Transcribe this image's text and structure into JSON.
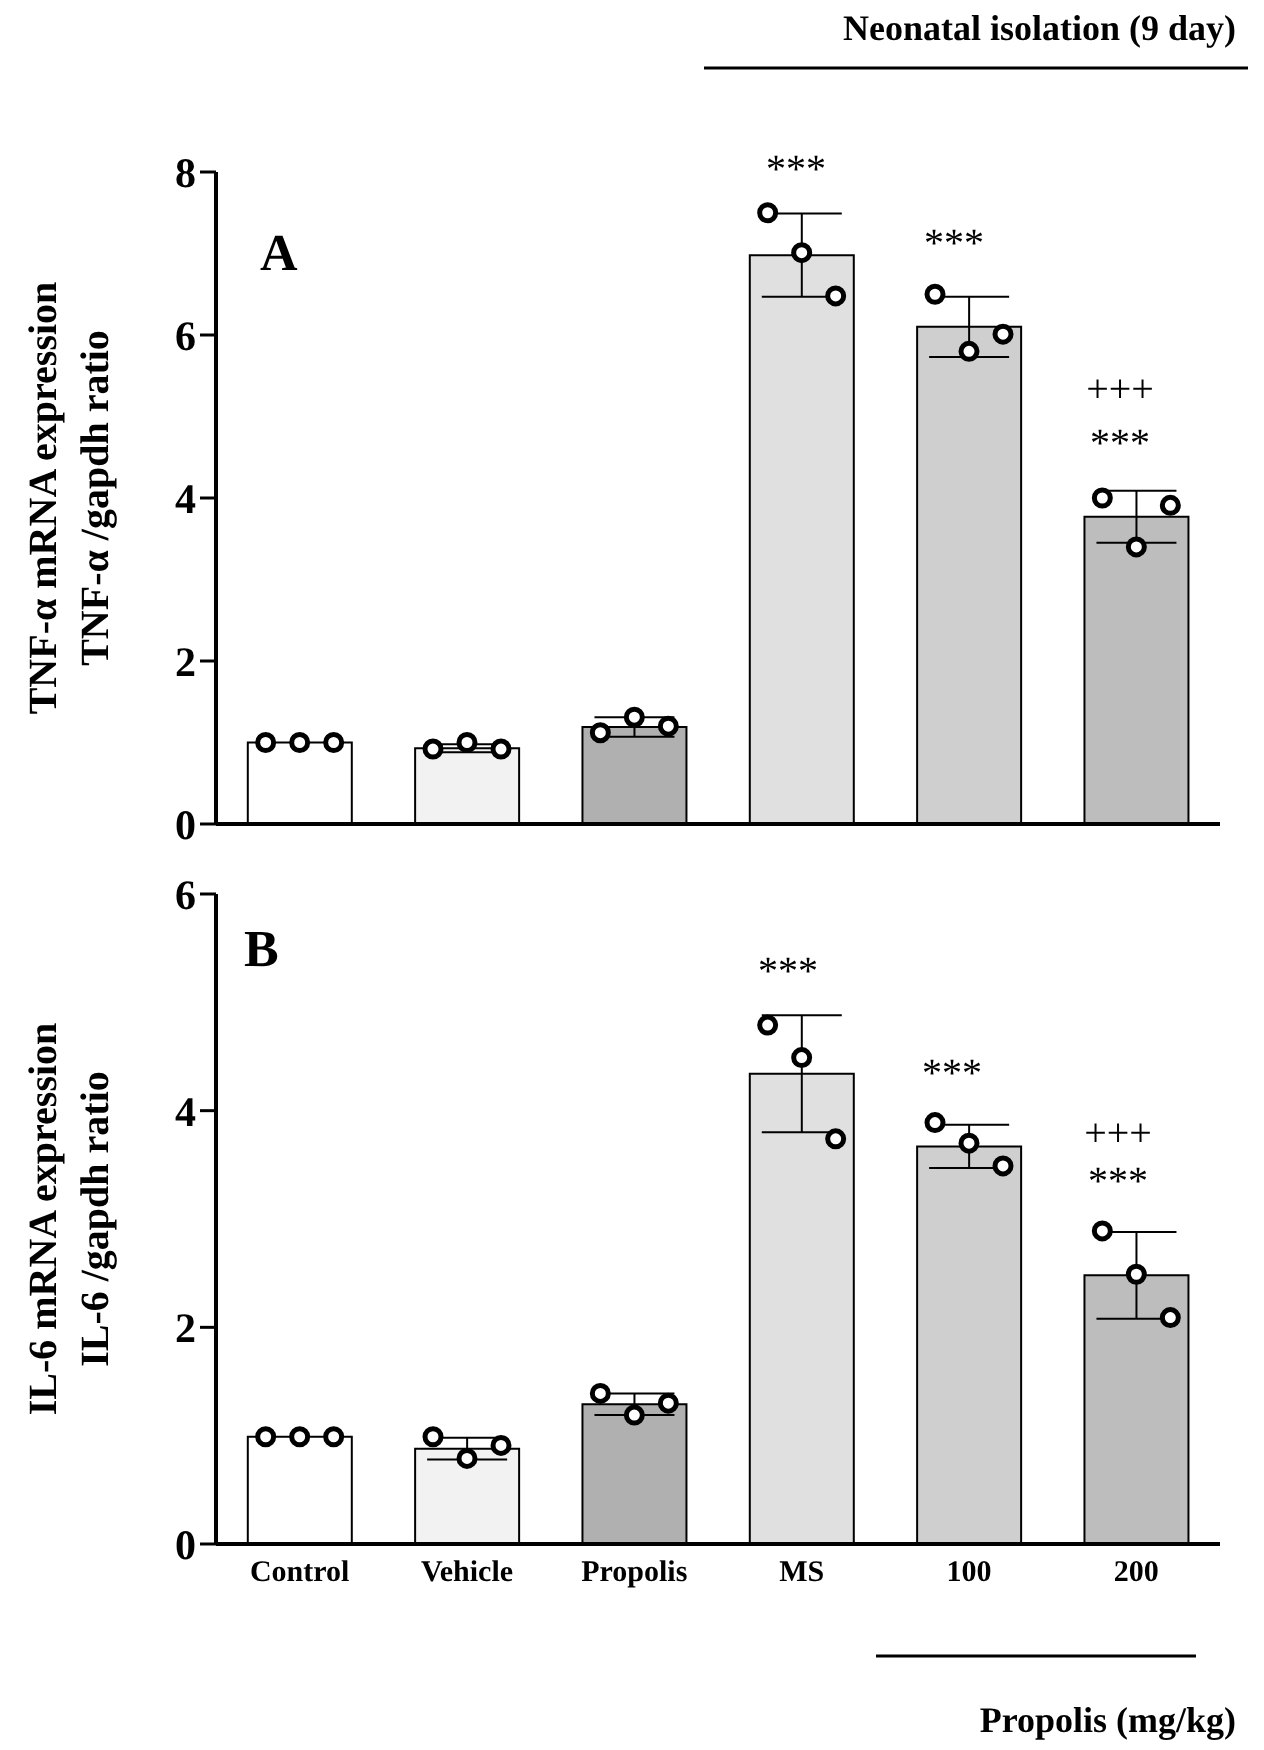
{
  "chart_data": [
    {
      "type": "bar",
      "categories": [
        "Control",
        "Vehicle",
        "Propolis",
        "MS",
        "100",
        "200"
      ],
      "ylabel": "TNF-α mRNA expression\nTNF-α /gapdh ratio",
      "ylim": [
        0,
        8
      ],
      "yticks": [
        0,
        2,
        4,
        6,
        8
      ],
      "tick_labels": "y",
      "grid": false,
      "legend": false,
      "series": [
        {
          "values": [
            1.0,
            0.93,
            1.19,
            6.98,
            6.1,
            3.77
          ],
          "errors": [
            0,
            0.05,
            0.12,
            0.51,
            0.37,
            0.32
          ],
          "colors": [
            "#ffffff",
            "#f2f2f2",
            "#b0b0b0",
            "#e0e0e0",
            "#cfcfcf",
            "#bdbdbd"
          ]
        },
        {
          "type": "scatter",
          "marker": "circle",
          "color": "#000000",
          "x": [
            "Control",
            "Control",
            "Control",
            "Vehicle",
            "Vehicle",
            "Vehicle",
            "Propolis",
            "Propolis",
            "Propolis",
            "MS",
            "MS",
            "MS",
            "100",
            "100",
            "100",
            "200",
            "200",
            "200"
          ],
          "values": [
            1.0,
            1.0,
            1.0,
            0.92,
            1.0,
            0.92,
            1.12,
            1.31,
            1.2,
            7.5,
            7.01,
            6.48,
            6.5,
            5.8,
            6.01,
            4.0,
            3.4,
            3.91
          ]
        }
      ],
      "annotations": [
        "A",
        "Neonatal isolation (9 day)",
        "***",
        "***",
        "+++",
        "***"
      ]
    },
    {
      "type": "bar",
      "categories": [
        "Control",
        "Vehicle",
        "Propolis",
        "MS",
        "100",
        "200"
      ],
      "ylabel": "IL-6 mRNA expression\nIL-6 /gapdh ratio",
      "ylim": [
        0,
        6
      ],
      "yticks": [
        0,
        2,
        4,
        6
      ],
      "grid": false,
      "legend": false,
      "series": [
        {
          "values": [
            0.99,
            0.88,
            1.29,
            4.34,
            3.67,
            2.48
          ],
          "errors": [
            0,
            0.1,
            0.1,
            0.54,
            0.2,
            0.4
          ],
          "colors": [
            "#ffffff",
            "#f2f2f2",
            "#b0b0b0",
            "#e0e0e0",
            "#cfcfcf",
            "#bdbdbd"
          ]
        },
        {
          "type": "scatter",
          "marker": "circle",
          "color": "#000000",
          "x": [
            "Control",
            "Control",
            "Control",
            "Vehicle",
            "Vehicle",
            "Vehicle",
            "Propolis",
            "Propolis",
            "Propolis",
            "MS",
            "MS",
            "MS",
            "100",
            "100",
            "100",
            "200",
            "200",
            "200"
          ],
          "values": [
            0.99,
            0.99,
            0.99,
            0.99,
            0.79,
            0.91,
            1.39,
            1.19,
            1.3,
            4.79,
            4.49,
            3.74,
            3.89,
            3.7,
            3.49,
            2.89,
            2.49,
            2.09
          ]
        }
      ],
      "annotations": [
        "B",
        "Propolis (mg/kg)",
        "***",
        "***",
        "+++",
        "***"
      ]
    }
  ]
}
